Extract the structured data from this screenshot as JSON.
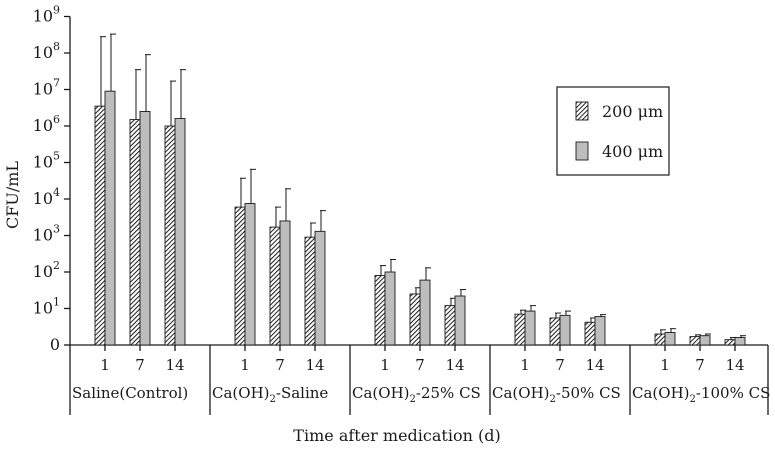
{
  "chart_data": {
    "type": "bar",
    "ylabel": "CFU/mL",
    "xlabel": "Time after medication (d)",
    "yscale": "log",
    "ylim": [
      1,
      1000000000
    ],
    "ytick_labels": [
      "0",
      "10<sup>1</sup>",
      "10<sup>2</sup>",
      "10<sup>3</sup>",
      "10<sup>4</sup>",
      "10<sup>5</sup>",
      "10<sup>6</sup>",
      "10<sup>7</sup>",
      "10<sup>8</sup>",
      "10<sup>9</sup>"
    ],
    "ytick_text": [
      {
        "base": "0",
        "exp": ""
      },
      {
        "base": "10",
        "exp": "1"
      },
      {
        "base": "10",
        "exp": "2"
      },
      {
        "base": "10",
        "exp": "3"
      },
      {
        "base": "10",
        "exp": "4"
      },
      {
        "base": "10",
        "exp": "5"
      },
      {
        "base": "10",
        "exp": "6"
      },
      {
        "base": "10",
        "exp": "7"
      },
      {
        "base": "10",
        "exp": "8"
      },
      {
        "base": "10",
        "exp": "9"
      }
    ],
    "groups": [
      {
        "label": "Saline(Control)",
        "label_parts": [
          {
            "t": "Saline(Control)",
            "sub": false
          }
        ]
      },
      {
        "label": "Ca(OH)2-Saline",
        "label_parts": [
          {
            "t": "Ca(OH)",
            "sub": false
          },
          {
            "t": "2",
            "sub": true
          },
          {
            "t": "-Saline",
            "sub": false
          }
        ]
      },
      {
        "label": "Ca(OH)2-25% CS",
        "label_parts": [
          {
            "t": "Ca(OH)",
            "sub": false
          },
          {
            "t": "2",
            "sub": true
          },
          {
            "t": "-25% CS",
            "sub": false
          }
        ]
      },
      {
        "label": "Ca(OH)2-50% CS",
        "label_parts": [
          {
            "t": "Ca(OH)",
            "sub": false
          },
          {
            "t": "2",
            "sub": true
          },
          {
            "t": "-50% CS",
            "sub": false
          }
        ]
      },
      {
        "label": "Ca(OH)2-100% CS",
        "label_parts": [
          {
            "t": "Ca(OH)",
            "sub": false
          },
          {
            "t": "2",
            "sub": true
          },
          {
            "t": "-100% CS",
            "sub": false
          }
        ]
      }
    ],
    "days": [
      "1",
      "7",
      "14"
    ],
    "series": [
      {
        "name": "200 μm",
        "style": "hatched",
        "values": [
          [
            3500000,
            1500000,
            1000000
          ],
          [
            6000,
            1700,
            900
          ],
          [
            80,
            25,
            12
          ],
          [
            7,
            5.5,
            4.2
          ],
          [
            2.0,
            1.7,
            1.4
          ]
        ],
        "error_upper": [
          [
            280000000,
            35000000,
            17000000
          ],
          [
            37000,
            6000,
            2200
          ],
          [
            150,
            37,
            19
          ],
          [
            9,
            7.5,
            5.5
          ],
          [
            2.6,
            1.9,
            1.6
          ]
        ]
      },
      {
        "name": "400 μm",
        "style": "gray",
        "values": [
          [
            9000000,
            2500000,
            1600000
          ],
          [
            7500,
            2500,
            1300
          ],
          [
            100,
            60,
            22
          ],
          [
            8.5,
            6.5,
            6.0
          ],
          [
            2.2,
            1.8,
            1.6
          ]
        ],
        "error_upper": [
          [
            330000000,
            90000000,
            35000000
          ],
          [
            65000,
            19000,
            4800
          ],
          [
            220,
            130,
            33
          ],
          [
            12,
            8.5,
            6.8
          ],
          [
            2.8,
            2.0,
            1.8
          ]
        ]
      }
    ],
    "legend_position": "right",
    "colors": {
      "gray_bar": "#bdbdbd",
      "ink": "#1a1a1a"
    }
  }
}
